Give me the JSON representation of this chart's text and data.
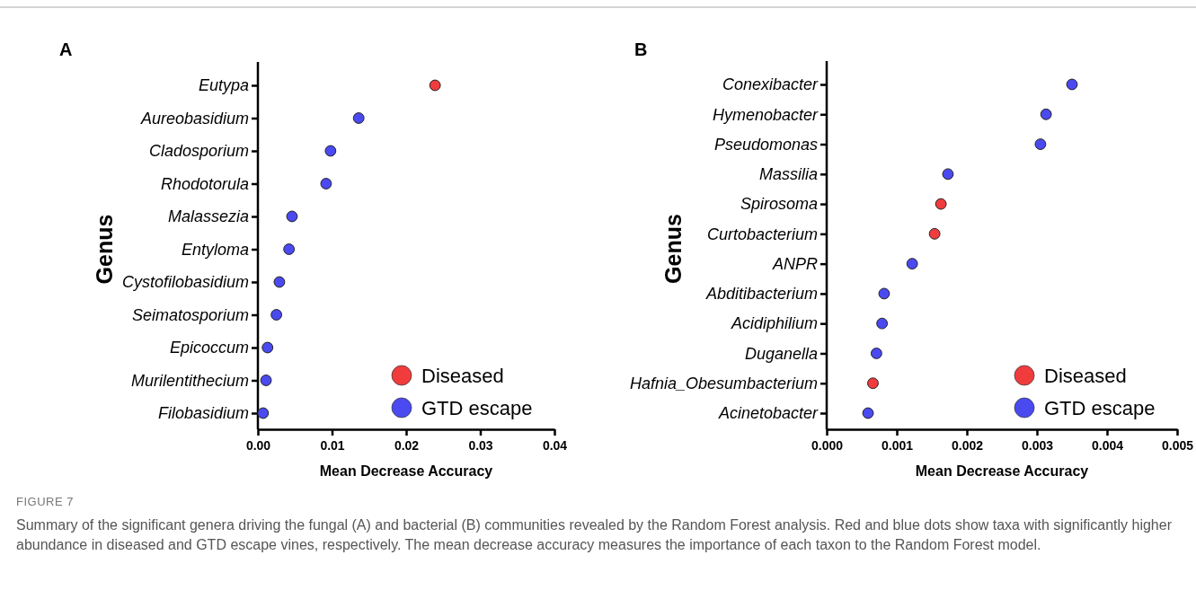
{
  "chart_data": [
    {
      "type": "scatter",
      "title": "A",
      "orientation": "horizontal",
      "ylabel": "Genus",
      "xlabel": "Mean Decrease Accuracy",
      "marker": "circle",
      "legend": "bottom right",
      "grid": false,
      "categories": [
        "Eutypa",
        "Aureobasidium",
        "Cladosporium",
        "Rhodotorula",
        "Malassezia",
        "Entyloma",
        "Cystofilobasidium",
        "Seimatosporium",
        "Epicoccum",
        "Murilentithecium",
        "Filobasidium"
      ],
      "series": [
        {
          "name": "Diseased",
          "color": "#f03c3c",
          "values": [
            0.0239,
            null,
            null,
            null,
            null,
            null,
            null,
            null,
            null,
            null,
            null
          ]
        },
        {
          "name": "GTD escape",
          "color": "#4a4af0",
          "values": [
            null,
            0.0136,
            0.0098,
            0.0092,
            0.0046,
            0.0042,
            0.0029,
            0.0025,
            0.0013,
            0.0011,
            0.0007
          ]
        }
      ],
      "xlim": [
        0,
        0.04
      ],
      "xticks": [
        {
          "value": 0,
          "label": "0.00"
        },
        {
          "value": 0.01,
          "label": "0.01"
        },
        {
          "value": 0.02,
          "label": "0.02"
        },
        {
          "value": 0.03,
          "label": "0.03"
        },
        {
          "value": 0.04,
          "label": "0.04"
        }
      ],
      "annotations": [
        "FIGURE 7",
        "Summary of the significant genera driving the fungal (A) and bacterial (B) communities revealed by the Random Forest analysis. Red and blue dots show taxa with significantly higher abundance in diseased and GTD escape vines, respectively. The mean decrease accuracy measures the importance of each taxon to the Random Forest model."
      ]
    },
    {
      "type": "scatter",
      "title": "B",
      "orientation": "horizontal",
      "ylabel": "Genus",
      "xlabel": "Mean Decrease Accuracy",
      "marker": "circle",
      "legend": "bottom right",
      "grid": false,
      "categories": [
        "Conexibacter",
        "Hymenobacter",
        "Pseudomonas",
        "Massilia",
        "Spirosoma",
        "Curtobacterium",
        "ANPR",
        "Abditibacterium",
        "Acidiphilium",
        "Duganella",
        "Hafnia_Obesumbacterium",
        "Acinetobacter"
      ],
      "series": [
        {
          "name": "Diseased",
          "color": "#f03c3c",
          "values": [
            null,
            null,
            null,
            null,
            0.00163,
            0.00154,
            null,
            null,
            null,
            null,
            0.00066,
            null
          ]
        },
        {
          "name": "GTD escape",
          "color": "#4a4af0",
          "values": [
            0.0035,
            0.00313,
            0.00305,
            0.00173,
            null,
            null,
            0.00122,
            0.00082,
            0.00079,
            0.00071,
            null,
            0.00059
          ]
        }
      ],
      "xlim": [
        0,
        0.005
      ],
      "xticks": [
        {
          "value": 0,
          "label": "0.000"
        },
        {
          "value": 0.001,
          "label": "0.001"
        },
        {
          "value": 0.002,
          "label": "0.002"
        },
        {
          "value": 0.003,
          "label": "0.003"
        },
        {
          "value": 0.004,
          "label": "0.004"
        },
        {
          "value": 0.005,
          "label": "0.005"
        }
      ]
    }
  ]
}
